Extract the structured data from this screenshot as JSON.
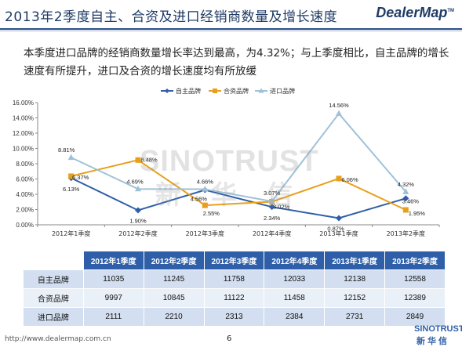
{
  "slide": {
    "title": "2013年2季度自主、合资及进口经销商数量及增长速度",
    "brand": "DealerMap",
    "brand_mark": "TM",
    "headline": "本季度进口品牌的经销商数量增长率达到最高，为4.32%；与上季度相比，自主品牌的增长速度有所提升，进口及合资的增长速度均有所放缓"
  },
  "watermark": {
    "en": "SINOTRUST",
    "cn": "新华信"
  },
  "chart_data": {
    "type": "line",
    "categories": [
      "2012年1季度",
      "2012年2季度",
      "2012年3季度",
      "2012年4季度",
      "2013年1季度",
      "2013年2季度"
    ],
    "series": [
      {
        "name": "自主品牌",
        "color": "#2f5fa8",
        "values": [
          6.13,
          1.9,
          4.56,
          2.34,
          0.87,
          3.46
        ],
        "labels": [
          "6.13%",
          "1.90%",
          "4.56%",
          "2.34%",
          "0.87%",
          "3.46%"
        ]
      },
      {
        "name": "合资品牌",
        "color": "#e8a01c",
        "values": [
          6.37,
          8.48,
          2.55,
          3.02,
          6.06,
          1.95
        ],
        "labels": [
          "6.37%",
          "8.48%",
          "2.55%",
          "3.02%",
          "6.06%",
          "1.95%"
        ]
      },
      {
        "name": "进口品牌",
        "color": "#9ec1d8",
        "values": [
          8.81,
          4.69,
          4.66,
          3.07,
          14.56,
          4.32
        ],
        "labels": [
          "8.81%",
          "4.69%",
          "4.66%",
          "3.07%",
          "14.56%",
          "4.32%"
        ]
      }
    ],
    "yticks": [
      "0.00%",
      "2.00%",
      "4.00%",
      "6.00%",
      "8.00%",
      "10.00%",
      "12.00%",
      "14.00%",
      "16.00%"
    ],
    "ylim": [
      0,
      16
    ],
    "grid": false,
    "legend": "top-center"
  },
  "table": {
    "headers": [
      "",
      "2012年1季度",
      "2012年2季度",
      "2012年3季度",
      "2012年4季度",
      "2013年1季度",
      "2013年2季度"
    ],
    "rows": [
      [
        "自主品牌",
        "11035",
        "11245",
        "11758",
        "12033",
        "12138",
        "12558"
      ],
      [
        "合资品牌",
        "9997",
        "10845",
        "11122",
        "11458",
        "12152",
        "12389"
      ],
      [
        "进口品牌",
        "2111",
        "2210",
        "2313",
        "2384",
        "2731",
        "2849"
      ]
    ]
  },
  "footer": {
    "url": "http://www.dealermap.com.cn",
    "page": "6",
    "logo_en": "SINOTRUST",
    "logo_cn": "新华信"
  }
}
